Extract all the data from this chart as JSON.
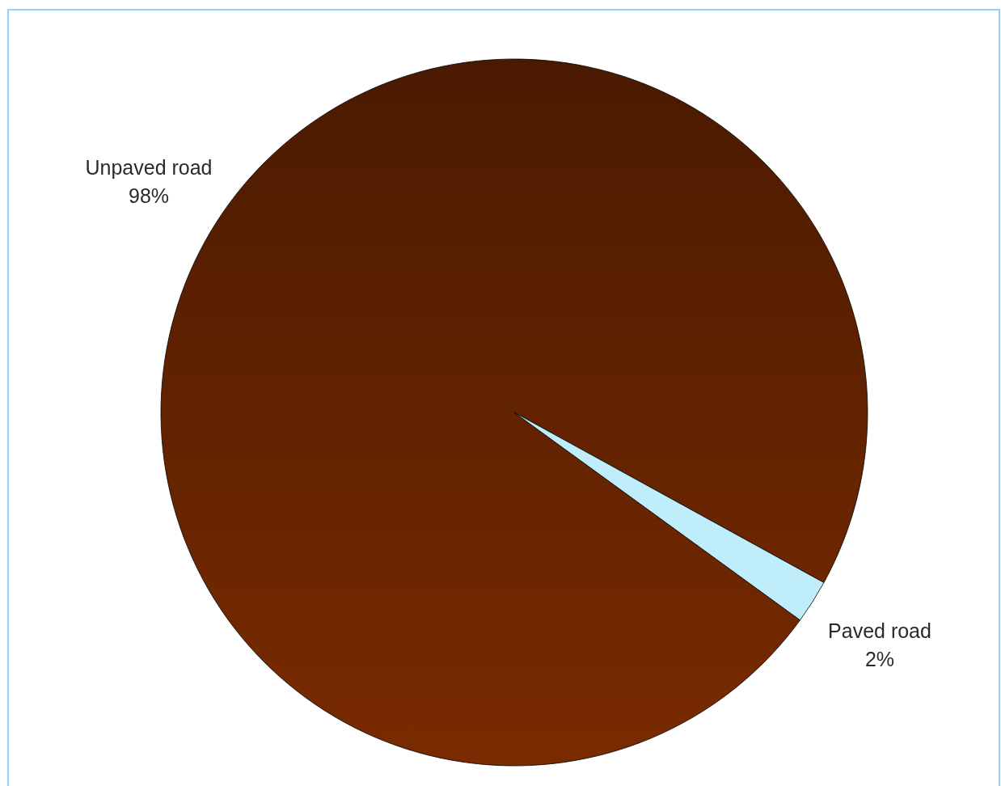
{
  "chart_data": {
    "type": "pie",
    "categories": [
      "Unpaved road",
      "Paved road"
    ],
    "values": [
      98,
      2
    ],
    "value_labels": [
      "98%",
      "2%"
    ],
    "colors": [
      "#662400",
      "#bfeefa"
    ]
  }
}
